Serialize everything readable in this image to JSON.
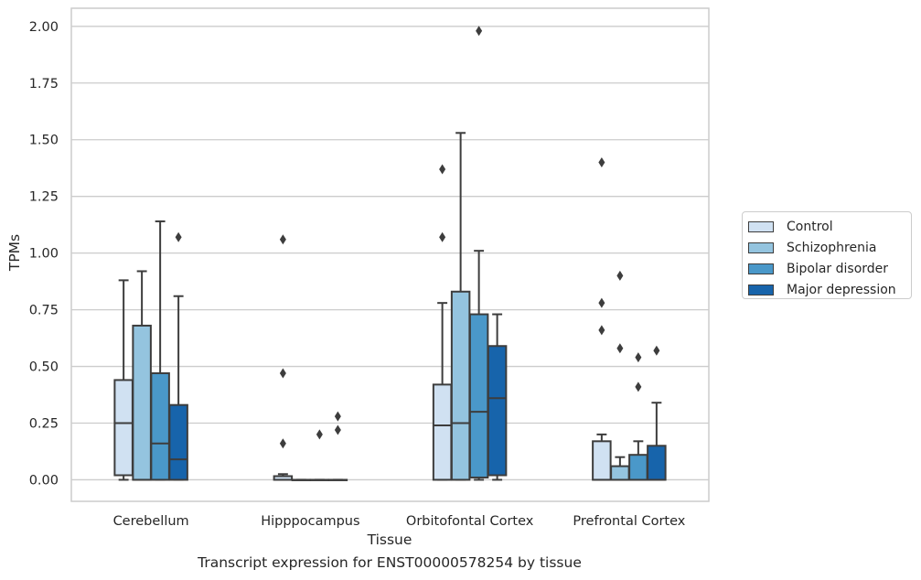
{
  "caption": "Transcript expression for ENST00000578254 by tissue",
  "legend": {
    "items": [
      {
        "label": "Control",
        "color": "#d0e1f2"
      },
      {
        "label": "Schizophrenia",
        "color": "#94c4df"
      },
      {
        "label": "Bipolar disorder",
        "color": "#4a98c9"
      },
      {
        "label": "Major depression",
        "color": "#1764ab"
      }
    ]
  },
  "chart_data": {
    "type": "box",
    "xlabel": "Tissue",
    "ylabel": "TPMs",
    "ylim": [
      -0.095,
      2.08
    ],
    "yticks": [
      0.0,
      0.25,
      0.5,
      0.75,
      1.0,
      1.25,
      1.5,
      1.75,
      2.0
    ],
    "ytick_labels": [
      "0.00",
      "0.25",
      "0.50",
      "0.75",
      "1.00",
      "1.25",
      "1.50",
      "1.75",
      "2.00"
    ],
    "grid": "horizontal",
    "legend_position": "right",
    "categories": [
      "Cerebellum",
      "Hipppocampus",
      "Orbitofontal Cortex",
      "Prefrontal Cortex"
    ],
    "series": [
      {
        "name": "Control",
        "color": "#d0e1f2",
        "boxes": [
          {
            "min": 0.0,
            "q1": 0.02,
            "median": 0.25,
            "q3": 0.44,
            "max": 0.88,
            "outliers": []
          },
          {
            "min": 0.0,
            "q1": 0.0,
            "median": 0.0,
            "q3": 0.016,
            "max": 0.025,
            "outliers": [
              0.16,
              0.47,
              1.06
            ]
          },
          {
            "min": 0.0,
            "q1": 0.0,
            "median": 0.24,
            "q3": 0.42,
            "max": 0.78,
            "outliers": [
              1.07,
              1.37
            ]
          },
          {
            "min": 0.0,
            "q1": 0.0,
            "median": 0.0,
            "q3": 0.17,
            "max": 0.2,
            "outliers": [
              0.66,
              0.78,
              1.4
            ]
          }
        ]
      },
      {
        "name": "Schizophrenia",
        "color": "#94c4df",
        "boxes": [
          {
            "min": 0.0,
            "q1": 0.0,
            "median": 0.0,
            "q3": 0.68,
            "max": 0.92,
            "outliers": []
          },
          {
            "min": 0.0,
            "q1": 0.0,
            "median": 0.0,
            "q3": 0.0,
            "max": 0.0,
            "outliers": []
          },
          {
            "min": 0.0,
            "q1": 0.0,
            "median": 0.25,
            "q3": 0.83,
            "max": 1.53,
            "outliers": []
          },
          {
            "min": 0.0,
            "q1": 0.0,
            "median": 0.0,
            "q3": 0.06,
            "max": 0.1,
            "outliers": [
              0.58,
              0.9
            ]
          }
        ]
      },
      {
        "name": "Bipolar disorder",
        "color": "#4a98c9",
        "boxes": [
          {
            "min": 0.0,
            "q1": 0.0,
            "median": 0.16,
            "q3": 0.47,
            "max": 1.14,
            "outliers": []
          },
          {
            "min": 0.0,
            "q1": 0.0,
            "median": 0.0,
            "q3": 0.0,
            "max": 0.0,
            "outliers": [
              0.2
            ]
          },
          {
            "min": 0.0,
            "q1": 0.01,
            "median": 0.3,
            "q3": 0.73,
            "max": 1.01,
            "outliers": [
              1.98
            ]
          },
          {
            "min": 0.0,
            "q1": 0.0,
            "median": 0.0,
            "q3": 0.11,
            "max": 0.17,
            "outliers": [
              0.41,
              0.54
            ]
          }
        ]
      },
      {
        "name": "Major depression",
        "color": "#1764ab",
        "boxes": [
          {
            "min": 0.0,
            "q1": 0.0,
            "median": 0.09,
            "q3": 0.33,
            "max": 0.81,
            "outliers": [
              1.07
            ]
          },
          {
            "min": 0.0,
            "q1": 0.0,
            "median": 0.0,
            "q3": 0.0,
            "max": 0.0,
            "outliers": [
              0.22,
              0.28
            ]
          },
          {
            "min": 0.0,
            "q1": 0.02,
            "median": 0.36,
            "q3": 0.59,
            "max": 0.73,
            "outliers": []
          },
          {
            "min": 0.0,
            "q1": 0.0,
            "median": 0.0,
            "q3": 0.15,
            "max": 0.34,
            "outliers": [
              0.57
            ]
          }
        ]
      }
    ]
  }
}
